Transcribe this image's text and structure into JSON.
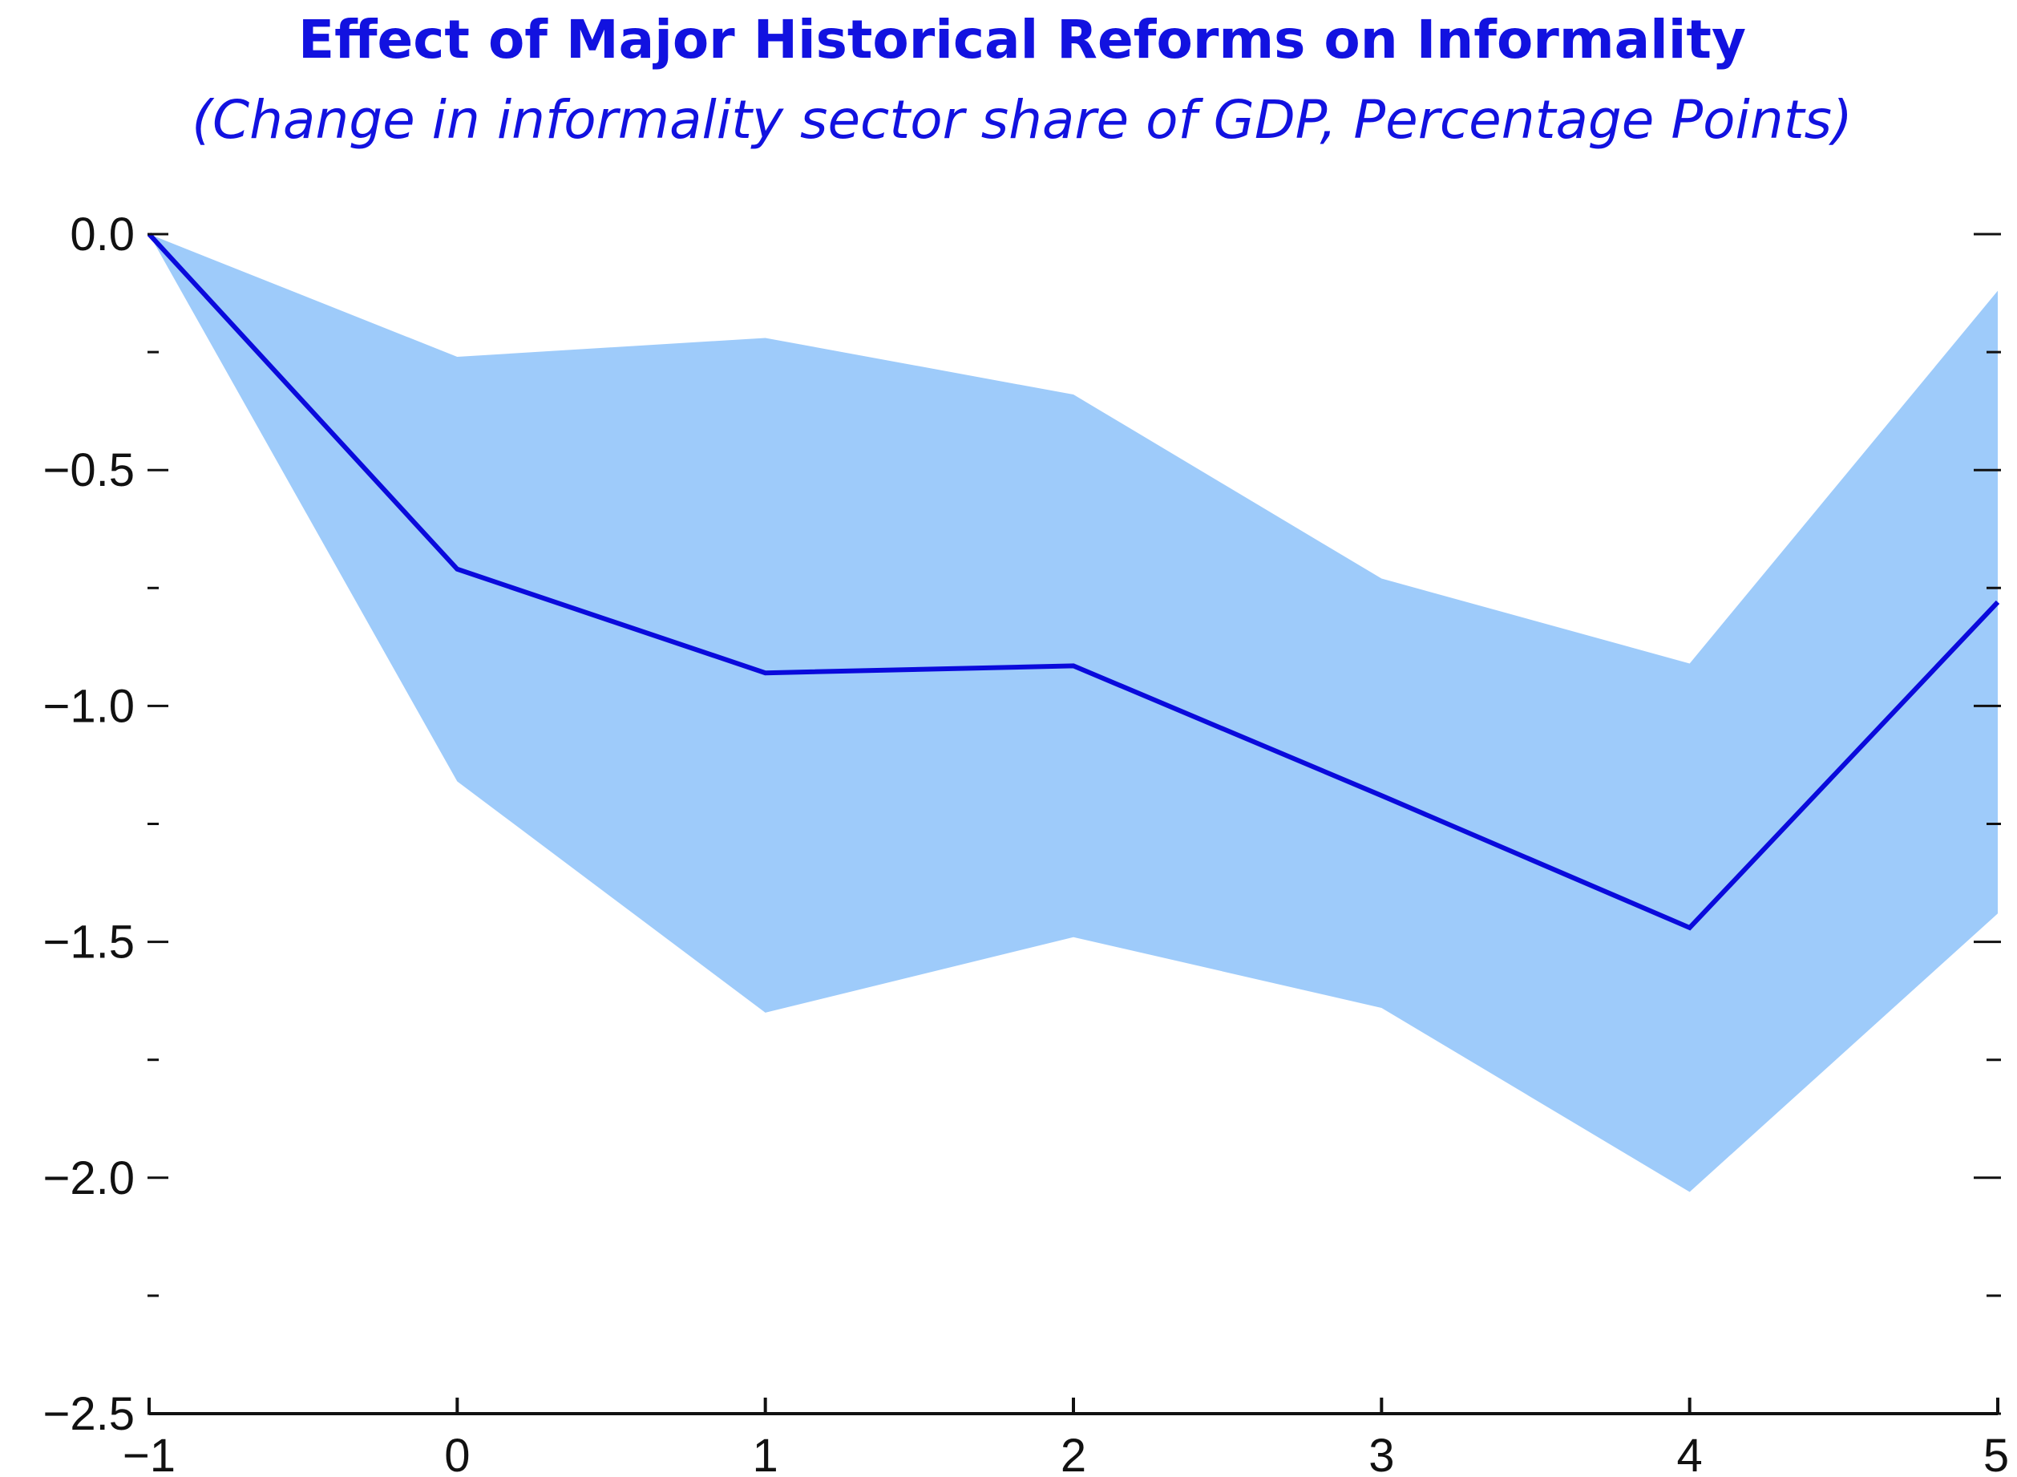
{
  "chart_data": {
    "type": "line",
    "title": "Effect of Major Historical Reforms on Informality",
    "subtitle": "(Change in informality sector share of GDP, Percentage Points)",
    "x": [
      -1,
      0,
      1,
      2,
      3,
      4,
      5
    ],
    "values": [
      0,
      -0.71,
      -0.93,
      -0.915,
      -1.19,
      -1.47,
      -0.78
    ],
    "upper": [
      0,
      -0.26,
      -0.22,
      -0.34,
      -0.73,
      -0.91,
      -0.12
    ],
    "lower": [
      0,
      -1.16,
      -1.65,
      -1.49,
      -1.64,
      -2.03,
      -1.44
    ],
    "color": "#0a0adc",
    "band_color": "#9ecbfa",
    "xlim": [
      -1,
      5
    ],
    "xticks": [
      {
        "value": -1,
        "label": "−1"
      },
      0,
      1,
      2,
      3,
      4,
      5
    ],
    "ylim": [
      -2.5,
      0
    ],
    "yticks": [
      {
        "value": 0,
        "label": "0.0"
      },
      {
        "value": -0.5,
        "label": "−0.5"
      },
      {
        "value": -1,
        "label": "−1.0"
      },
      {
        "value": -1.5,
        "label": "−1.5"
      },
      {
        "value": -2,
        "label": "−2.0"
      },
      {
        "value": -2.5,
        "label": "−2.5"
      }
    ],
    "yminorticks": [
      -0.25,
      -0.75,
      -1.25,
      -1.75,
      -2.25
    ]
  }
}
